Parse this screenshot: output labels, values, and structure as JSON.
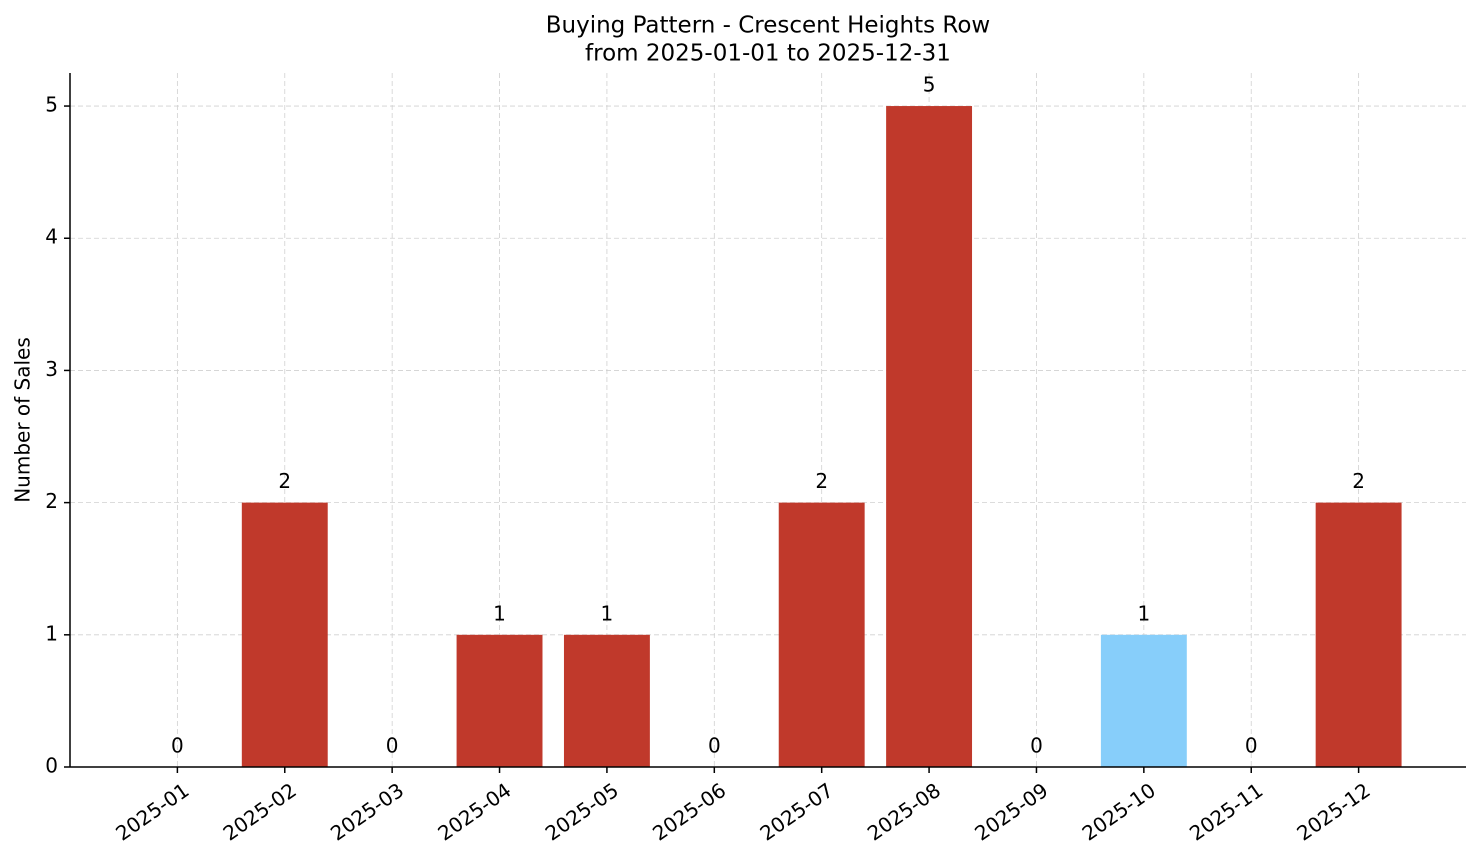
{
  "chart_data": {
    "type": "bar",
    "title": "Buying Pattern - Crescent Heights Row",
    "subtitle": "from 2025-01-01 to 2025-12-31",
    "y_label": "Number of Sales",
    "categories": [
      "2025-01",
      "2025-02",
      "2025-03",
      "2025-04",
      "2025-05",
      "2025-06",
      "2025-07",
      "2025-08",
      "2025-09",
      "2025-10",
      "2025-11",
      "2025-12"
    ],
    "values": [
      0,
      2,
      0,
      1,
      1,
      0,
      2,
      5,
      0,
      1,
      0,
      2
    ],
    "colors": [
      "#c0392b",
      "#c0392b",
      "#c0392b",
      "#c0392b",
      "#c0392b",
      "#c0392b",
      "#c0392b",
      "#c0392b",
      "#c0392b",
      "#87cefa",
      "#c0392b",
      "#c0392b"
    ],
    "ylim": [
      0,
      5.25
    ],
    "yticks": [
      0,
      1,
      2,
      3,
      4,
      5
    ],
    "grid": true
  }
}
